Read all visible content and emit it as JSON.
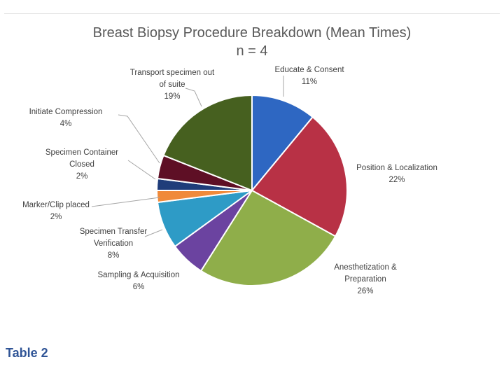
{
  "chart_data": {
    "type": "pie",
    "title": "Breast Biopsy Procedure Breakdown (Mean Times)",
    "subtitle": "n = 4",
    "slices": [
      {
        "name": "Educate & Consent",
        "label_lines": [
          "Educate & Consent"
        ],
        "value_label": "11%",
        "value": 11,
        "color": "#2e67c2"
      },
      {
        "name": "Position & Localization",
        "label_lines": [
          "Position & Localization"
        ],
        "value_label": "22%",
        "value": 22,
        "color": "#b83145"
      },
      {
        "name": "Anesthetization & Preparation",
        "label_lines": [
          "Anesthetization &",
          "Preparation"
        ],
        "value_label": "26%",
        "value": 26,
        "color": "#8fae4a"
      },
      {
        "name": "Sampling & Acquisition",
        "label_lines": [
          "Sampling & Acquisition"
        ],
        "value_label": "6%",
        "value": 6,
        "color": "#6b43a0"
      },
      {
        "name": "Specimen Transfer Verification",
        "label_lines": [
          "Specimen Transfer",
          "Verification"
        ],
        "value_label": "8%",
        "value": 8,
        "color": "#2e9bc6"
      },
      {
        "name": "Marker/Clip placed",
        "label_lines": [
          "Marker/Clip placed"
        ],
        "value_label": "2%",
        "value": 2,
        "color": "#f08a3a"
      },
      {
        "name": "Specimen Container Closed",
        "label_lines": [
          "Specimen Container",
          "Closed"
        ],
        "value_label": "2%",
        "value": 2,
        "color": "#1f3d7a"
      },
      {
        "name": "Initiate Compression",
        "label_lines": [
          "Initiate Compression"
        ],
        "value_label": "4%",
        "value": 4,
        "color": "#5e0f25"
      },
      {
        "name": "Transport specimen out of suite",
        "label_lines": [
          "Transport specimen out",
          "of suite"
        ],
        "value_label": "19%",
        "value": 19,
        "color": "#46601f"
      }
    ]
  },
  "caption": "Table 2"
}
